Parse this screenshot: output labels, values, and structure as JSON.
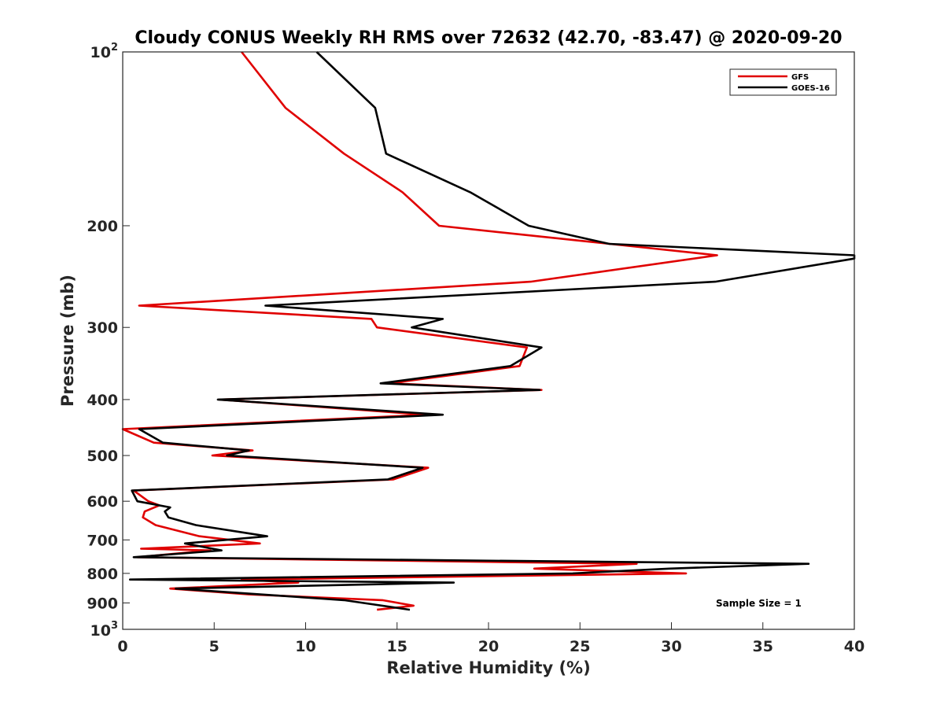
{
  "chart_data": {
    "type": "line",
    "title": "Cloudy CONUS Weekly RH RMS over 72632 (42.70, -83.47) @ 2020-09-20",
    "xlabel": "Relative Humidity (%)",
    "ylabel": "Pressure (mb)",
    "xlim": [
      0,
      40
    ],
    "ylim": [
      100,
      1000
    ],
    "y_scale": "log",
    "y_reversed": true,
    "x_ticks": [
      0,
      5,
      10,
      15,
      20,
      25,
      30,
      35,
      40
    ],
    "x_tick_labels": [
      "0",
      "5",
      "10",
      "15",
      "20",
      "25",
      "30",
      "35",
      "40"
    ],
    "y_ticks": [
      200,
      300,
      400,
      500,
      600,
      700,
      800,
      900
    ],
    "y_tick_labels": [
      "200",
      "300",
      "400",
      "500",
      "600",
      "700",
      "800",
      "900"
    ],
    "y_top_label": {
      "base": "10",
      "exp": "2"
    },
    "y_bottom_label": {
      "base": "10",
      "exp": "3"
    },
    "grid": false,
    "legend_position": "top-right",
    "annotation": "Sample Size = 1",
    "series": [
      {
        "name": "GFS",
        "color": "#e00000",
        "points": [
          [
            6.5,
            100
          ],
          [
            8.9,
            125
          ],
          [
            12.1,
            150
          ],
          [
            15.3,
            175
          ],
          [
            17.3,
            200
          ],
          [
            32.5,
            225
          ],
          [
            22.3,
            250
          ],
          [
            0.9,
            275
          ],
          [
            13.6,
            290
          ],
          [
            13.9,
            300
          ],
          [
            22.1,
            325
          ],
          [
            21.7,
            350
          ],
          [
            14.6,
            375
          ],
          [
            22.9,
            385
          ],
          [
            5.3,
            400
          ],
          [
            16.6,
            425
          ],
          [
            0.0,
            450
          ],
          [
            1.7,
            475
          ],
          [
            7.1,
            490
          ],
          [
            4.9,
            500
          ],
          [
            16.7,
            525
          ],
          [
            14.8,
            550
          ],
          [
            0.6,
            575
          ],
          [
            1.4,
            600
          ],
          [
            2.0,
            610
          ],
          [
            1.2,
            625
          ],
          [
            1.1,
            640
          ],
          [
            1.8,
            660
          ],
          [
            4.2,
            690
          ],
          [
            7.5,
            710
          ],
          [
            1.0,
            725
          ],
          [
            4.8,
            730
          ],
          [
            0.8,
            750
          ],
          [
            28.1,
            770
          ],
          [
            22.5,
            785
          ],
          [
            30.8,
            800
          ],
          [
            6.5,
            820
          ],
          [
            9.6,
            830
          ],
          [
            2.6,
            850
          ],
          [
            6.9,
            870
          ],
          [
            14.2,
            890
          ],
          [
            15.9,
            910
          ],
          [
            13.9,
            925
          ]
        ]
      },
      {
        "name": "GOES-16",
        "color": "#000000",
        "points": [
          [
            10.6,
            100
          ],
          [
            13.8,
            125
          ],
          [
            14.4,
            150
          ],
          [
            19.0,
            175
          ],
          [
            22.2,
            200
          ],
          [
            26.6,
            215
          ],
          [
            40.0,
            225
          ],
          [
            40.0,
            228
          ],
          [
            32.4,
            250
          ],
          [
            7.8,
            275
          ],
          [
            17.5,
            290
          ],
          [
            15.8,
            300
          ],
          [
            22.9,
            325
          ],
          [
            21.2,
            350
          ],
          [
            14.1,
            375
          ],
          [
            22.8,
            385
          ],
          [
            5.2,
            400
          ],
          [
            17.5,
            425
          ],
          [
            0.9,
            450
          ],
          [
            2.2,
            475
          ],
          [
            6.9,
            490
          ],
          [
            5.7,
            500
          ],
          [
            16.4,
            525
          ],
          [
            14.5,
            550
          ],
          [
            0.5,
            575
          ],
          [
            0.8,
            600
          ],
          [
            2.6,
            615
          ],
          [
            2.3,
            625
          ],
          [
            2.5,
            640
          ],
          [
            4.0,
            660
          ],
          [
            7.9,
            690
          ],
          [
            3.4,
            710
          ],
          [
            5.4,
            730
          ],
          [
            0.6,
            750
          ],
          [
            37.5,
            770
          ],
          [
            29.9,
            785
          ],
          [
            24.6,
            800
          ],
          [
            0.4,
            820
          ],
          [
            18.1,
            830
          ],
          [
            2.9,
            850
          ],
          [
            12.1,
            890
          ],
          [
            15.7,
            925
          ]
        ]
      }
    ]
  }
}
